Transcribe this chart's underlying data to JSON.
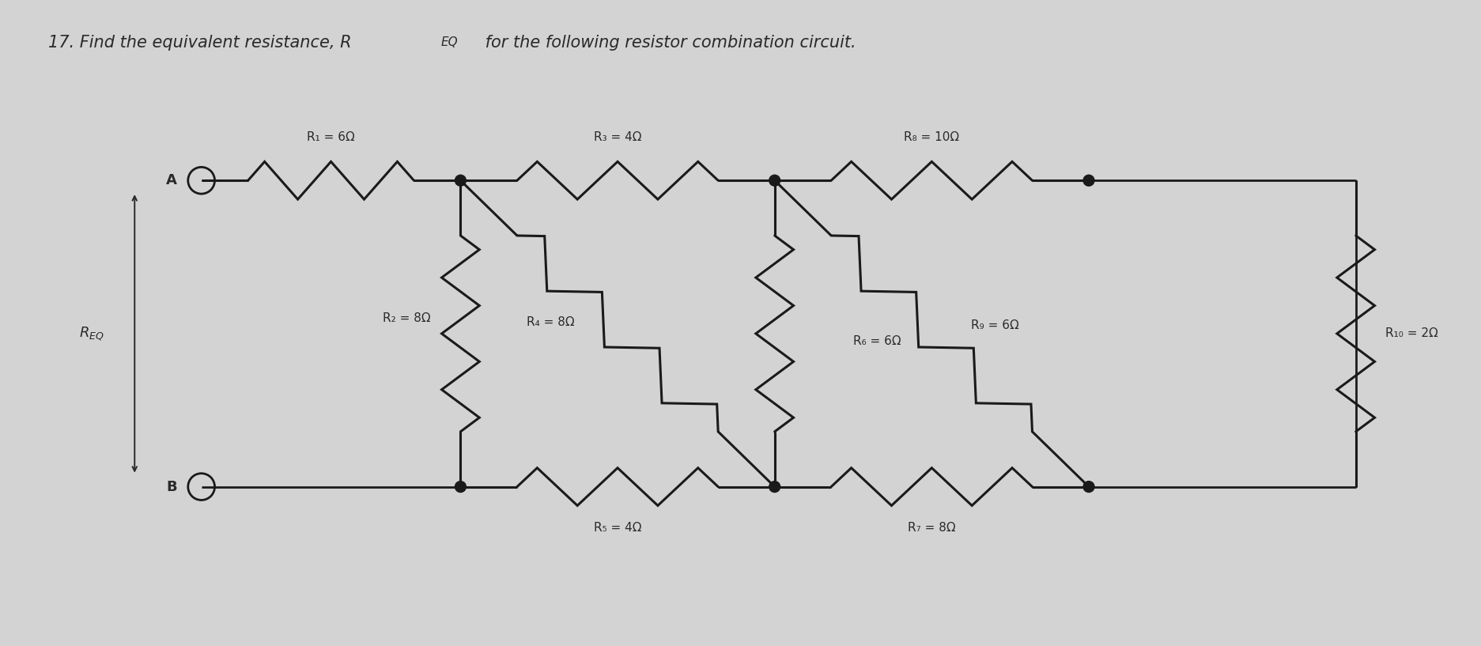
{
  "title": "17. Find the equivalent resistance, R_EQ for the following resistor combination circuit.",
  "bg_color": "#d3d3d3",
  "line_color": "#1a1a1a",
  "text_color": "#2a2a2a",
  "resistors": {
    "R1": {
      "label": "R₁ = 6Ω",
      "value": 6
    },
    "R2": {
      "label": "R₂ = 8Ω",
      "value": 8
    },
    "R3": {
      "label": "R₃ = 4Ω",
      "value": 4
    },
    "R4": {
      "label": "R₄ = 8Ω",
      "value": 8
    },
    "R5": {
      "label": "R₅ = 4Ω",
      "value": 4
    },
    "R6": {
      "label": "R₆ = 6Ω",
      "value": 6
    },
    "R7": {
      "label": "R₇ = 8Ω",
      "value": 8
    },
    "R8": {
      "label": "R₈ = 10Ω",
      "value": 10
    },
    "R9": {
      "label": "R₉ = 6Ω",
      "value": 6
    },
    "R10": {
      "label": "R₁₀ = 2Ω",
      "value": 2
    }
  },
  "nodes": {
    "xA": 2.5,
    "xN1": 5.8,
    "xN2": 9.8,
    "xN3": 13.8,
    "xNR": 17.2,
    "yT": 5.9,
    "yB": 2.0,
    "yBN2": 2.0
  }
}
